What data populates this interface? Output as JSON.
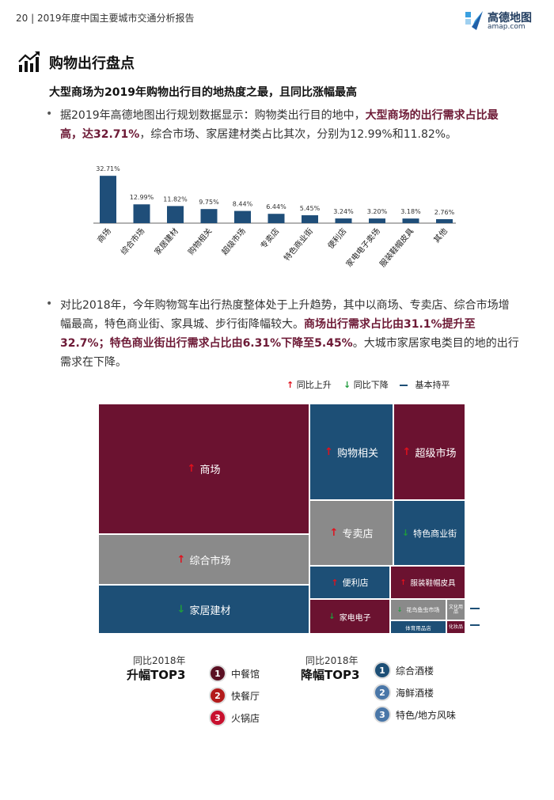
{
  "header": {
    "title": "20 | 2019年度中国主要城市交通分析报告"
  },
  "logo": {
    "name": "高德地图",
    "sub": "amap.com"
  },
  "section": {
    "title": "购物出行盘点"
  },
  "subtitle": "大型商场为2019年购物出行目的地热度之最，且同比涨幅最高",
  "para1": {
    "a": "据2019年高德地图出行规划数据显示：购物类出行目的地中，",
    "b": "大型商场的出行需求占比最高，达32.71%",
    "c": "，综合市场、家居建材类占比其次，分别为12.99%和11.82%。"
  },
  "para2": {
    "a": "对比2018年，今年购物驾车出行热度整体处于上升趋势，其中以商场、专卖店、综合市场增幅最高，特色商业街、家具城、步行街降幅较大。",
    "b": "商场出行需求占比由31.1%提升至32.7%；特色商业街出行需求占比由6.31%下降至5.45%",
    "c": "。大城市家居家电类目的地的出行需求在下降。"
  },
  "chart_data": {
    "type": "bar",
    "categories": [
      "商场",
      "综合市场",
      "家居建材",
      "购物相关",
      "超级市场",
      "专卖店",
      "特色商业街",
      "便利店",
      "家电电子卖场",
      "服装鞋帽皮具",
      "其他"
    ],
    "values": [
      32.71,
      12.99,
      11.82,
      9.75,
      8.44,
      6.44,
      5.45,
      3.24,
      3.2,
      3.18,
      2.76
    ],
    "value_labels": [
      "32.71%",
      "12.99%",
      "11.82%",
      "9.75%",
      "8.44%",
      "6.44%",
      "5.45%",
      "3.24%",
      "3.20%",
      "3.18%",
      "2.76%"
    ],
    "ylim": [
      0,
      35
    ],
    "grid": false,
    "bar_color": "#1f4e79"
  },
  "legend": {
    "up": "同比上升",
    "down": "同比下降",
    "flat": "基本持平"
  },
  "colors": {
    "maroon": "#6b1230",
    "blue": "#1d4f76",
    "gray": "#8a8a8a",
    "up": "#e0111d",
    "down": "#1f9b3c",
    "flat": "#1d4f76"
  },
  "treemap": {
    "items": [
      {
        "label": "商场",
        "color": "maroon",
        "trend": "up"
      },
      {
        "label": "综合市场",
        "color": "gray",
        "trend": "up"
      },
      {
        "label": "家居建材",
        "color": "blue",
        "trend": "down"
      },
      {
        "label": "购物相关",
        "color": "blue",
        "trend": "up"
      },
      {
        "label": "超级市场",
        "color": "maroon",
        "trend": "up"
      },
      {
        "label": "专卖店",
        "color": "gray",
        "trend": "up"
      },
      {
        "label": "特色商业街",
        "color": "blue",
        "trend": "down"
      },
      {
        "label": "便利店",
        "color": "blue",
        "trend": "up"
      },
      {
        "label": "服装鞋帽皮具",
        "color": "maroon",
        "trend": "up"
      },
      {
        "label": "家电电子",
        "color": "maroon",
        "trend": "down"
      },
      {
        "label": "花鸟鱼虫市场",
        "color": "gray",
        "trend": "down"
      },
      {
        "label": "文化用品",
        "color": "gray",
        "trend": "flat"
      },
      {
        "label": "体育用品店",
        "color": "blue",
        "trend": "none"
      },
      {
        "label": "化妆品",
        "color": "maroon",
        "trend": "none"
      }
    ]
  },
  "rise": {
    "caption": "同比2018年",
    "title": "升幅TOP3",
    "items": [
      {
        "num": "1",
        "label": "中餐馆"
      },
      {
        "num": "2",
        "label": "快餐厅"
      },
      {
        "num": "3",
        "label": "火锅店"
      }
    ]
  },
  "fall": {
    "caption": "同比2018年",
    "title": "降幅TOP3",
    "items": [
      {
        "num": "1",
        "label": "综合酒楼"
      },
      {
        "num": "2",
        "label": "海鲜酒楼"
      },
      {
        "num": "3",
        "label": "特色/地方风味"
      }
    ]
  }
}
